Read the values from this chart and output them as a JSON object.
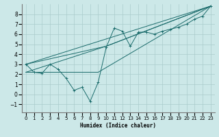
{
  "bg_color": "#cce8e8",
  "grid_color": "#aacccc",
  "line_color": "#1a6b6b",
  "xlabel": "Humidex (Indice chaleur)",
  "ylim": [
    -1.8,
    9.0
  ],
  "xlim": [
    -0.5,
    23.5
  ],
  "yticks": [
    -1,
    0,
    1,
    2,
    3,
    4,
    5,
    6,
    7,
    8
  ],
  "xticks": [
    0,
    1,
    2,
    3,
    4,
    5,
    6,
    7,
    8,
    9,
    10,
    11,
    12,
    13,
    14,
    15,
    16,
    17,
    18,
    19,
    20,
    21,
    22,
    23
  ],
  "series": [
    {
      "x": [
        0,
        1,
        2,
        3,
        4,
        5,
        6,
        7,
        8,
        9,
        10,
        11,
        12,
        13,
        14,
        15,
        16,
        17,
        18,
        19,
        20,
        21,
        22,
        23
      ],
      "y": [
        3.0,
        2.2,
        2.1,
        3.0,
        2.5,
        1.6,
        0.4,
        0.7,
        -0.7,
        1.2,
        4.7,
        6.6,
        6.3,
        4.8,
        6.2,
        6.2,
        6.0,
        6.3,
        6.5,
        6.7,
        7.0,
        7.5,
        7.8,
        8.8
      ],
      "marker": true
    },
    {
      "x": [
        0,
        23
      ],
      "y": [
        3.0,
        8.8
      ],
      "marker": false
    },
    {
      "comment": "line from (0,3) to (10,4.8) to (23,8.8)",
      "x": [
        0,
        10,
        23
      ],
      "y": [
        3.0,
        4.8,
        8.8
      ],
      "marker": false
    },
    {
      "comment": "line from (0,2.2) via (10,4.8) to (23,8.8)",
      "x": [
        0,
        10,
        23
      ],
      "y": [
        2.2,
        4.8,
        8.8
      ],
      "marker": false
    },
    {
      "comment": "line from (0,2.2) flat to (9,2.2) then to (23,8.8)",
      "x": [
        0,
        9,
        23
      ],
      "y": [
        2.2,
        2.2,
        8.8
      ],
      "marker": false
    }
  ]
}
